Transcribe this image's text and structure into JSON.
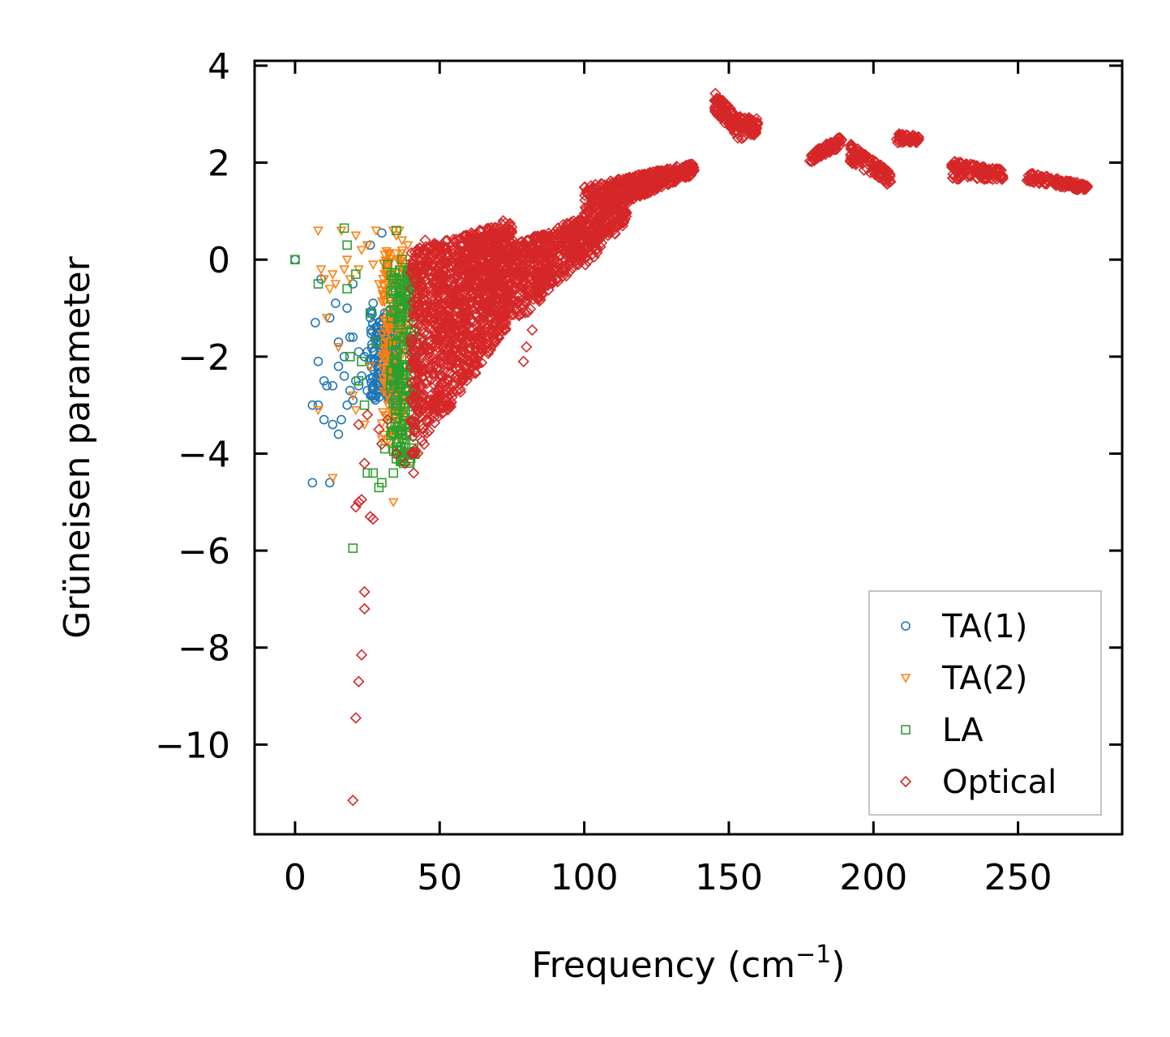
{
  "chart_data": {
    "type": "scatter",
    "title": "",
    "xlabel_main": "Frequency (cm",
    "xlabel_sup": "−1",
    "xlabel_close": ")",
    "ylabel": "Grüneisen parameter",
    "xlim": [
      -14,
      286
    ],
    "ylim": [
      -11.85,
      4.1
    ],
    "x_ticks": [
      0,
      50,
      100,
      150,
      200,
      250
    ],
    "x_tick_labels": [
      "0",
      "50",
      "100",
      "150",
      "200",
      "250"
    ],
    "y_ticks": [
      4,
      2,
      0,
      -2,
      -4,
      -6,
      -8,
      -10
    ],
    "y_tick_labels": [
      "4",
      "2",
      "0",
      "−2",
      "−4",
      "−6",
      "−8",
      "−10"
    ],
    "grid": false,
    "legend_position": "lower-right",
    "series": [
      {
        "name": "TA(1)",
        "marker": "circle",
        "color": "#1f77b4",
        "points": [
          [
            0,
            0
          ],
          [
            6,
            -3.0
          ],
          [
            6,
            -4.6
          ],
          [
            7,
            -1.3
          ],
          [
            8,
            -3.0
          ],
          [
            8,
            -2.1
          ],
          [
            9,
            -0.4
          ],
          [
            10,
            -2.5
          ],
          [
            10,
            -3.3
          ],
          [
            11,
            -2.6
          ],
          [
            12,
            -1.2
          ],
          [
            12,
            -4.6
          ],
          [
            13,
            -2.6
          ],
          [
            13,
            -3.4
          ],
          [
            14,
            -0.9
          ],
          [
            15,
            -2.2
          ],
          [
            15,
            -3.6
          ],
          [
            15,
            -1.7
          ],
          [
            16,
            -3.3
          ],
          [
            17,
            -2.0
          ],
          [
            17,
            -2.4
          ],
          [
            18,
            -3.0
          ],
          [
            18,
            -1.0
          ],
          [
            19,
            -1.6
          ],
          [
            19,
            -2.7
          ],
          [
            20,
            -0.5
          ],
          [
            20,
            -1.6
          ],
          [
            20,
            -2.9
          ],
          [
            21,
            -2.5
          ],
          [
            22,
            -2.6
          ],
          [
            22,
            -1.9
          ],
          [
            23,
            -2.4
          ],
          [
            24,
            -2.0
          ],
          [
            25,
            -1.9
          ],
          [
            25,
            -2.7
          ],
          [
            26,
            0.3
          ],
          [
            26,
            -1.2
          ],
          [
            27,
            -0.9
          ],
          [
            27,
            -2.6
          ],
          [
            28,
            -1.4
          ],
          [
            28,
            -2.8
          ],
          [
            29,
            -2.2
          ],
          [
            30,
            -1.6
          ],
          [
            30,
            0.55
          ],
          [
            31,
            -1.1
          ],
          [
            31,
            -2.0
          ],
          [
            32,
            -1.5
          ],
          [
            33,
            -1.8
          ],
          [
            33,
            -2.5
          ],
          [
            34,
            -1.3
          ]
        ],
        "cluster": {
          "x": [
            26,
            35
          ],
          "y": [
            -2.9,
            -1.0
          ],
          "n": 160
        }
      },
      {
        "name": "TA(2)",
        "marker": "triangle-down",
        "color": "#ff7f0e",
        "points": [
          [
            8,
            0.6
          ],
          [
            8,
            -3.1
          ],
          [
            9,
            -0.2
          ],
          [
            10,
            -0.4
          ],
          [
            11,
            -1.2
          ],
          [
            12,
            -0.6
          ],
          [
            13,
            -0.3
          ],
          [
            13,
            -4.5
          ],
          [
            14,
            -0.5
          ],
          [
            15,
            -1.8
          ],
          [
            16,
            0.6
          ],
          [
            17,
            -0.2
          ],
          [
            18,
            0.0
          ],
          [
            19,
            -0.4
          ],
          [
            20,
            -2.8
          ],
          [
            21,
            0.5
          ],
          [
            21,
            -3.1
          ],
          [
            22,
            -0.2
          ],
          [
            23,
            0.2
          ],
          [
            24,
            -3.4
          ],
          [
            25,
            0.3
          ],
          [
            26,
            -2.2
          ],
          [
            27,
            -0.1
          ],
          [
            28,
            0.6
          ],
          [
            29,
            -0.5
          ],
          [
            30,
            -3.7
          ],
          [
            31,
            0.1
          ],
          [
            32,
            -0.3
          ],
          [
            33,
            -2.3
          ],
          [
            34,
            -5.0
          ],
          [
            34,
            0.6
          ],
          [
            35,
            0.5
          ],
          [
            36,
            0.6
          ],
          [
            37,
            0.4
          ],
          [
            38,
            -0.2
          ],
          [
            39,
            0.3
          ]
        ],
        "cluster": {
          "x": [
            30,
            38
          ],
          "y": [
            -3.8,
            0.3
          ],
          "n": 200
        }
      },
      {
        "name": "LA",
        "marker": "square",
        "color": "#2ca02c",
        "points": [
          [
            0,
            0
          ],
          [
            8,
            -0.5
          ],
          [
            17,
            0.65
          ],
          [
            18,
            0.3
          ],
          [
            18,
            -0.6
          ],
          [
            19,
            -2.0
          ],
          [
            20,
            -5.95
          ],
          [
            21,
            -0.3
          ],
          [
            22,
            -2.5
          ],
          [
            23,
            -2.1
          ],
          [
            24,
            -3.0
          ],
          [
            25,
            -4.4
          ],
          [
            26,
            -1.1
          ],
          [
            27,
            -4.4
          ],
          [
            28,
            -1.7
          ],
          [
            29,
            -4.7
          ],
          [
            30,
            -4.6
          ],
          [
            31,
            -3.9
          ],
          [
            32,
            -0.1
          ],
          [
            33,
            -2.6
          ],
          [
            34,
            -4.4
          ],
          [
            35,
            0.6
          ],
          [
            36,
            -0.5
          ],
          [
            37,
            0.0
          ],
          [
            38,
            -3.4
          ],
          [
            39,
            -0.5
          ],
          [
            40,
            -2.8
          ],
          [
            40,
            -4.1
          ],
          [
            41,
            -0.1
          ],
          [
            41,
            -3.8
          ]
        ],
        "cluster": {
          "x": [
            33,
            42
          ],
          "y": [
            -4.2,
            -0.2
          ],
          "n": 220
        }
      },
      {
        "name": "Optical",
        "marker": "diamond",
        "color": "#d62728",
        "points": [
          [
            20,
            -11.15
          ],
          [
            21,
            -9.45
          ],
          [
            22,
            -8.7
          ],
          [
            23,
            -8.15
          ],
          [
            24,
            -7.2
          ],
          [
            24,
            -6.85
          ],
          [
            21,
            -5.1
          ],
          [
            22,
            -5.0
          ],
          [
            23,
            -4.95
          ],
          [
            24,
            -4.2
          ],
          [
            26,
            -5.3
          ],
          [
            27,
            -5.35
          ],
          [
            22,
            -3.4
          ],
          [
            25,
            -3.2
          ],
          [
            29,
            -3.5
          ],
          [
            30,
            -3.8
          ],
          [
            32,
            -3.3
          ],
          [
            35,
            -4.0
          ],
          [
            38,
            -4.2
          ],
          [
            41,
            -4.4
          ],
          [
            45,
            0.4
          ],
          [
            48,
            0.3
          ],
          [
            52,
            0.2
          ],
          [
            58,
            0.3
          ],
          [
            62,
            0.4
          ],
          [
            72,
            0.8
          ],
          [
            79,
            -2.1
          ],
          [
            80,
            -1.8
          ],
          [
            82,
            -1.45
          ],
          [
            88,
            0.3
          ],
          [
            95,
            0.6
          ]
        ],
        "bands": [
          {
            "x": [
              40,
              75
            ],
            "y0": [
              -4.2,
              -1.3
            ],
            "y1": [
              0.2,
              0.8
            ],
            "n": 1400
          },
          {
            "x": [
              75,
              100
            ],
            "y0": [
              -1.4,
              0.0
            ],
            "y1": [
              0.3,
              0.9
            ],
            "n": 500
          },
          {
            "x": [
              100,
              115
            ],
            "y0": [
              -0.2,
              0.8
            ],
            "y1": [
              1.5,
              1.7
            ],
            "n": 350
          },
          {
            "x": [
              115,
              138
            ],
            "y0": [
              1.2,
              1.75
            ],
            "y1": [
              1.7,
              2.0
            ],
            "n": 300
          },
          {
            "x": [
              145,
              152
            ],
            "y0": [
              3.0,
              2.6
            ],
            "y1": [
              3.45,
              3.05
            ],
            "n": 90
          },
          {
            "x": [
              152,
              160
            ],
            "y0": [
              2.4,
              2.6
            ],
            "y1": [
              3.0,
              2.9
            ],
            "n": 80
          },
          {
            "x": [
              178,
              189
            ],
            "y0": [
              2.0,
              2.3
            ],
            "y1": [
              2.2,
              2.55
            ],
            "n": 90
          },
          {
            "x": [
              192,
              206
            ],
            "y0": [
              2.0,
              1.5
            ],
            "y1": [
              2.4,
              1.8
            ],
            "n": 110
          },
          {
            "x": [
              208,
              216
            ],
            "y0": [
              2.4,
              2.4
            ],
            "y1": [
              2.6,
              2.55
            ],
            "n": 60
          },
          {
            "x": [
              227,
              245
            ],
            "y0": [
              1.65,
              1.65
            ],
            "y1": [
              2.05,
              1.85
            ],
            "n": 120
          },
          {
            "x": [
              253,
              274
            ],
            "y0": [
              1.6,
              1.4
            ],
            "y1": [
              1.8,
              1.55
            ],
            "n": 120
          }
        ]
      }
    ]
  }
}
